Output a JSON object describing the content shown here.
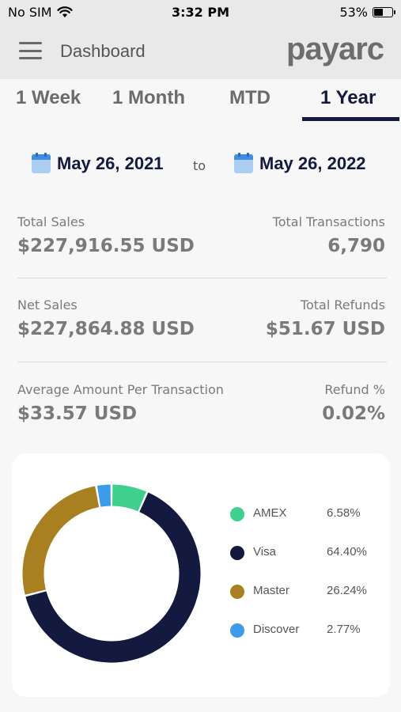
{
  "status_bar": {
    "carrier": "No SIM",
    "time": "3:32 PM",
    "battery": "53%",
    "battery_level": 0.53
  },
  "header": {
    "title": "Dashboard",
    "logo": "payarc",
    "menu_icon": "hamburger-menu-icon"
  },
  "tabs": [
    {
      "label": "1 Week",
      "active": false
    },
    {
      "label": "1 Month",
      "active": false
    },
    {
      "label": "MTD",
      "active": false
    },
    {
      "label": "1 Year",
      "active": true
    }
  ],
  "date_range": {
    "from": "May 26, 2021",
    "to_label": "to",
    "to": "May 26, 2022"
  },
  "stats": {
    "total_sales": {
      "label": "Total Sales",
      "value": "$227,916.55 USD"
    },
    "total_transactions": {
      "label": "Total Transactions",
      "value": "6,790"
    },
    "net_sales": {
      "label": "Net Sales",
      "value": "$227,864.88 USD"
    },
    "total_refunds": {
      "label": "Total Refunds",
      "value": "$51.67 USD"
    },
    "avg_per_transaction": {
      "label": "Average Amount Per Transaction",
      "value": "$33.57 USD"
    },
    "refund_pct": {
      "label": "Refund %",
      "value": "0.02%"
    }
  },
  "chart_data": {
    "type": "pie",
    "categories": [
      "AMEX",
      "Visa",
      "Master",
      "Discover"
    ],
    "values": [
      6.58,
      64.4,
      26.24,
      2.77
    ],
    "value_labels": [
      "6.58%",
      "64.40%",
      "26.24%",
      "2.77%"
    ],
    "colors": [
      "#3fcf8e",
      "#141a3f",
      "#a88020",
      "#3d9bec"
    ],
    "donut": true,
    "legend": "right"
  }
}
